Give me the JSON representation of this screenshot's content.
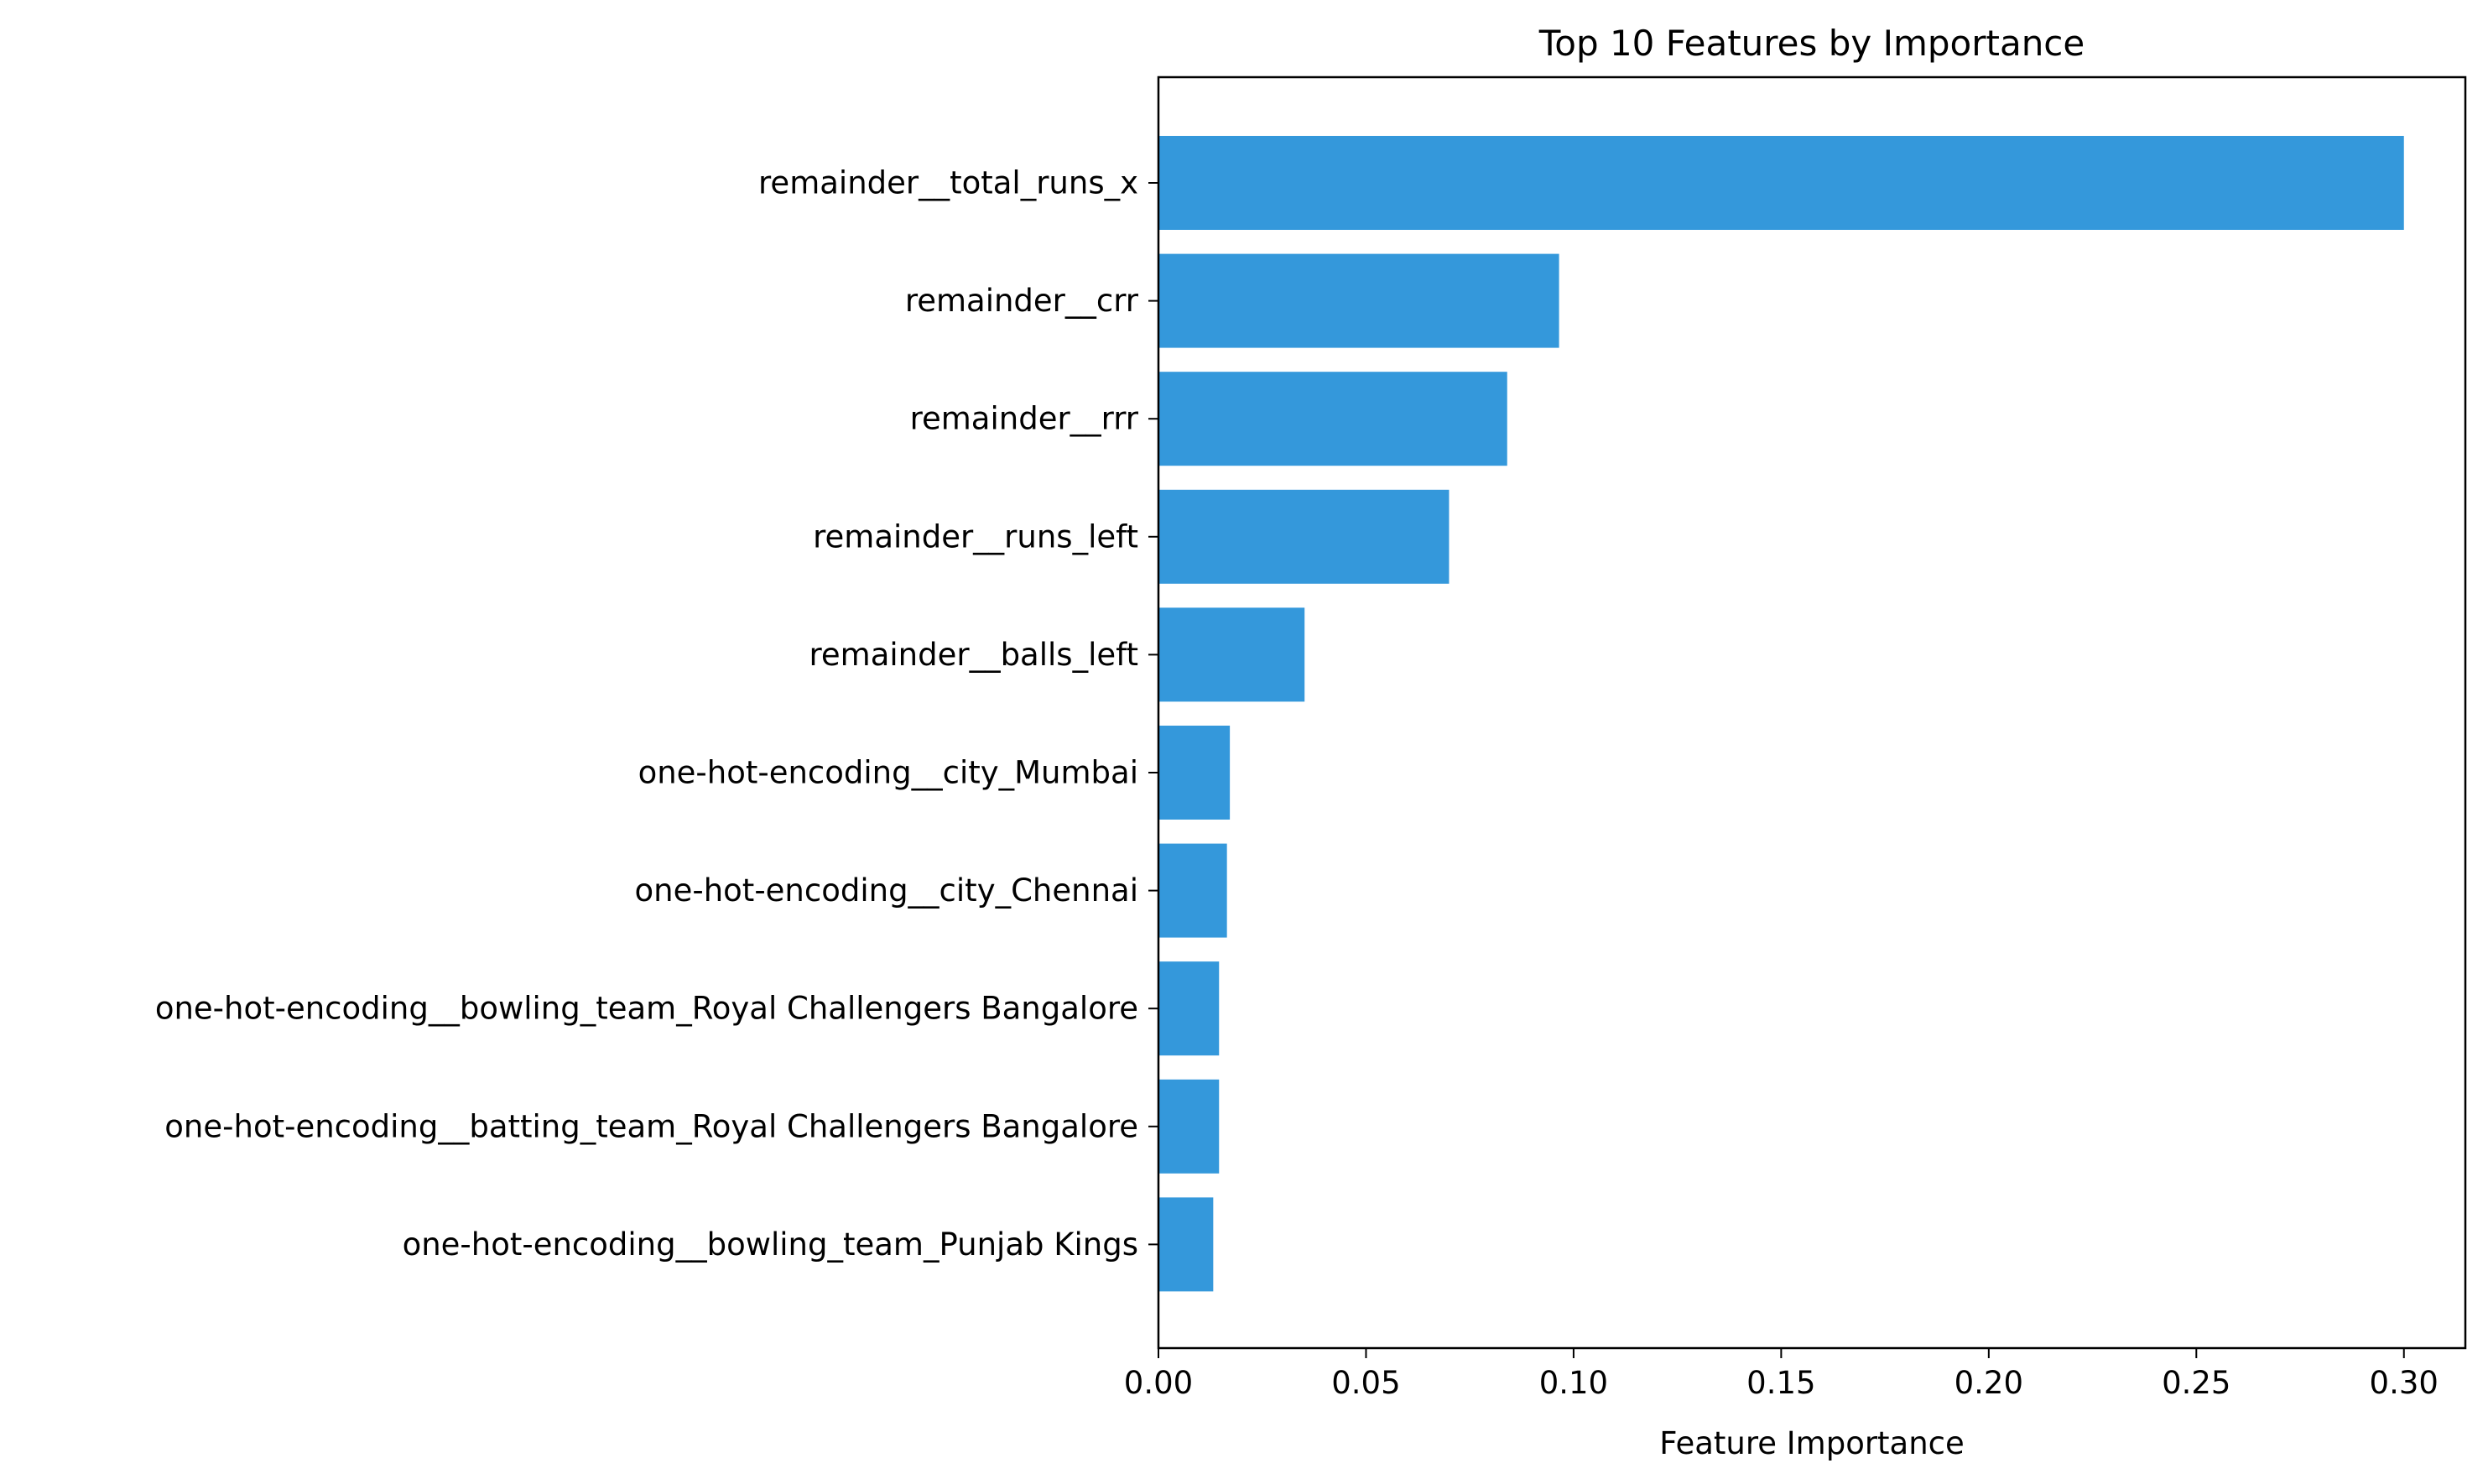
{
  "chart_data": {
    "type": "bar",
    "orientation": "horizontal",
    "title": "Top 10 Features by Importance",
    "xlabel": "Feature Importance",
    "ylabel": "",
    "xlim": [
      0,
      0.3148
    ],
    "xticks": [
      0.0,
      0.05,
      0.1,
      0.15,
      0.2,
      0.25,
      0.3
    ],
    "xtick_labels": [
      "0.00",
      "0.05",
      "0.10",
      "0.15",
      "0.20",
      "0.25",
      "0.30"
    ],
    "grid": false,
    "legend": "none",
    "bar_color": "#3498db",
    "categories": [
      "remainder__total_runs_x",
      "remainder__crr",
      "remainder__rrr",
      "remainder__runs_left",
      "remainder__balls_left",
      "one-hot-encoding__city_Mumbai",
      "one-hot-encoding__city_Chennai",
      "one-hot-encoding__bowling_team_Royal Challengers Bangalore",
      "one-hot-encoding__batting_team_Royal Challengers Bangalore",
      "one-hot-encoding__bowling_team_Punjab Kings"
    ],
    "values": [
      0.3,
      0.0965,
      0.084,
      0.07,
      0.0352,
      0.0172,
      0.0165,
      0.0146,
      0.0146,
      0.0132
    ]
  }
}
